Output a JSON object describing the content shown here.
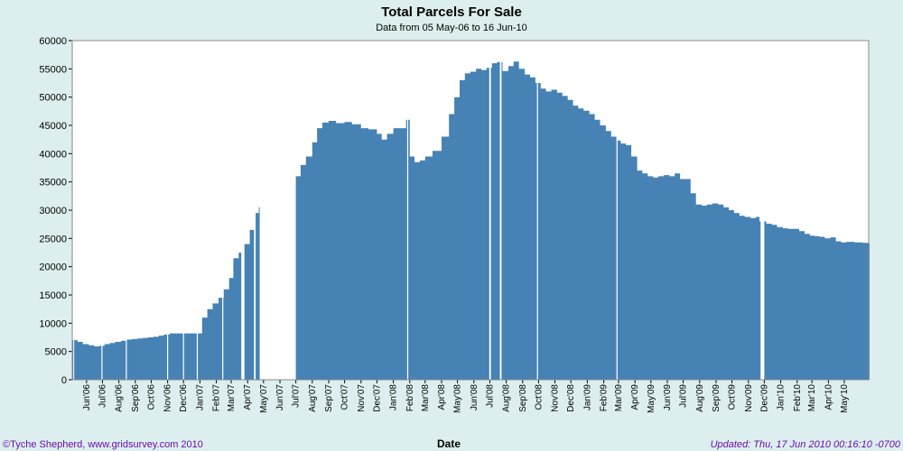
{
  "chart_data": {
    "type": "bar",
    "title": "Total Parcels For Sale",
    "subtitle": "Data from 05 May-06 to 16 Jun-10",
    "xlabel": "Date",
    "ylabel": "",
    "ylim": [
      0,
      60000
    ],
    "yticks": [
      "0",
      "5000",
      "10000",
      "15000",
      "20000",
      "25000",
      "30000",
      "35000",
      "40000",
      "45000",
      "50000",
      "55000",
      "60000"
    ],
    "xlim": [
      "2006-05-05",
      "2010-06-16"
    ],
    "xticks": [
      {
        "date": "2006-06-01",
        "label": "Jun'06"
      },
      {
        "date": "2006-07-01",
        "label": "Jul'06"
      },
      {
        "date": "2006-08-01",
        "label": "Aug'06"
      },
      {
        "date": "2006-09-01",
        "label": "Sep'06"
      },
      {
        "date": "2006-10-01",
        "label": "Oct'06"
      },
      {
        "date": "2006-11-01",
        "label": "Nov'06"
      },
      {
        "date": "2006-12-01",
        "label": "Dec'06"
      },
      {
        "date": "2007-01-01",
        "label": "Jan'07"
      },
      {
        "date": "2007-02-01",
        "label": "Feb'07"
      },
      {
        "date": "2007-03-01",
        "label": "Mar'07"
      },
      {
        "date": "2007-04-01",
        "label": "Apr'07"
      },
      {
        "date": "2007-05-01",
        "label": "May'07"
      },
      {
        "date": "2007-06-01",
        "label": "Jun'07"
      },
      {
        "date": "2007-07-01",
        "label": "Jul'07"
      },
      {
        "date": "2007-08-01",
        "label": "Aug'07"
      },
      {
        "date": "2007-09-01",
        "label": "Sep'07"
      },
      {
        "date": "2007-10-01",
        "label": "Oct'07"
      },
      {
        "date": "2007-11-01",
        "label": "Nov'07"
      },
      {
        "date": "2007-12-01",
        "label": "Dec'07"
      },
      {
        "date": "2008-01-01",
        "label": "Jan'08"
      },
      {
        "date": "2008-02-01",
        "label": "Feb'08"
      },
      {
        "date": "2008-03-01",
        "label": "Mar'08"
      },
      {
        "date": "2008-04-01",
        "label": "Apr'08"
      },
      {
        "date": "2008-05-01",
        "label": "May'08"
      },
      {
        "date": "2008-06-01",
        "label": "Jun'08"
      },
      {
        "date": "2008-07-01",
        "label": "Jul'08"
      },
      {
        "date": "2008-08-01",
        "label": "Aug'08"
      },
      {
        "date": "2008-09-01",
        "label": "Sep'08"
      },
      {
        "date": "2008-10-01",
        "label": "Oct'08"
      },
      {
        "date": "2008-11-01",
        "label": "Nov'08"
      },
      {
        "date": "2008-12-01",
        "label": "Dec'08"
      },
      {
        "date": "2009-01-01",
        "label": "Jan'09"
      },
      {
        "date": "2009-02-01",
        "label": "Feb'09"
      },
      {
        "date": "2009-03-01",
        "label": "Mar'09"
      },
      {
        "date": "2009-04-01",
        "label": "Apr'09"
      },
      {
        "date": "2009-05-01",
        "label": "May'09"
      },
      {
        "date": "2009-06-01",
        "label": "Jun'09"
      },
      {
        "date": "2009-07-01",
        "label": "Jul'09"
      },
      {
        "date": "2009-08-01",
        "label": "Aug'09"
      },
      {
        "date": "2009-09-01",
        "label": "Sep'09"
      },
      {
        "date": "2009-10-01",
        "label": "Oct'09"
      },
      {
        "date": "2009-11-01",
        "label": "Nov'09"
      },
      {
        "date": "2009-12-01",
        "label": "Dec'09"
      },
      {
        "date": "2010-01-01",
        "label": "Jan'10"
      },
      {
        "date": "2010-02-01",
        "label": "Feb'10"
      },
      {
        "date": "2010-03-01",
        "label": "Mar'10"
      },
      {
        "date": "2010-04-01",
        "label": "Apr'10"
      },
      {
        "date": "2010-05-01",
        "label": "May'10"
      }
    ],
    "grid": false,
    "bar_color": "#4682b4",
    "series": [
      {
        "values": [
          [
            "2006-05-05",
            7000
          ],
          [
            "2006-05-15",
            6700
          ],
          [
            "2006-05-25",
            6300
          ],
          [
            "2006-06-05",
            6100
          ],
          [
            "2006-06-15",
            5900
          ],
          [
            "2006-06-25",
            6000
          ],
          [
            "2006-07-05",
            6300
          ],
          [
            "2006-07-15",
            6500
          ],
          [
            "2006-07-25",
            6700
          ],
          [
            "2006-08-05",
            6900
          ],
          [
            "2006-08-15",
            7100
          ],
          [
            "2006-08-25",
            7200
          ],
          [
            "2006-09-05",
            7300
          ],
          [
            "2006-09-15",
            7400
          ],
          [
            "2006-09-25",
            7500
          ],
          [
            "2006-10-05",
            7600
          ],
          [
            "2006-10-15",
            7800
          ],
          [
            "2006-10-25",
            8000
          ],
          [
            "2006-11-05",
            8200
          ],
          [
            "2006-11-15",
            8200
          ],
          [
            "2006-11-25",
            8200
          ],
          [
            "2006-12-05",
            8200
          ],
          [
            "2006-12-15",
            8200
          ],
          [
            "2006-12-25",
            8200
          ],
          [
            "2007-01-05",
            11000
          ],
          [
            "2007-01-15",
            12500
          ],
          [
            "2007-01-25",
            13500
          ],
          [
            "2007-02-05",
            14500
          ],
          [
            "2007-02-15",
            16000
          ],
          [
            "2007-02-25",
            18000
          ],
          [
            "2007-03-05",
            21500
          ],
          [
            "2007-03-15",
            22500
          ],
          [
            "2007-03-25",
            24000
          ],
          [
            "2007-04-05",
            26500
          ],
          [
            "2007-04-15",
            29500
          ],
          [
            "2007-04-22",
            30500
          ],
          [
            "2007-07-01",
            36000
          ],
          [
            "2007-07-10",
            38000
          ],
          [
            "2007-07-20",
            39500
          ],
          [
            "2007-08-01",
            42000
          ],
          [
            "2007-08-10",
            44500
          ],
          [
            "2007-08-20",
            45500
          ],
          [
            "2007-09-01",
            45800
          ],
          [
            "2007-09-15",
            45400
          ],
          [
            "2007-10-01",
            45600
          ],
          [
            "2007-10-15",
            45200
          ],
          [
            "2007-11-01",
            44500
          ],
          [
            "2007-11-15",
            44300
          ],
          [
            "2007-12-01",
            43500
          ],
          [
            "2007-12-10",
            42500
          ],
          [
            "2007-12-20",
            43500
          ],
          [
            "2008-01-01",
            44500
          ],
          [
            "2008-01-15",
            44500
          ],
          [
            "2008-01-25",
            46000
          ],
          [
            "2008-02-01",
            39500
          ],
          [
            "2008-02-10",
            38500
          ],
          [
            "2008-02-20",
            38800
          ],
          [
            "2008-03-01",
            39500
          ],
          [
            "2008-03-15",
            40500
          ],
          [
            "2008-04-01",
            43000
          ],
          [
            "2008-04-15",
            47000
          ],
          [
            "2008-04-25",
            50000
          ],
          [
            "2008-05-05",
            53000
          ],
          [
            "2008-05-15",
            54200
          ],
          [
            "2008-05-25",
            54500
          ],
          [
            "2008-06-05",
            55000
          ],
          [
            "2008-06-15",
            54800
          ],
          [
            "2008-06-25",
            55200
          ],
          [
            "2008-07-05",
            56000
          ],
          [
            "2008-07-15",
            56200
          ],
          [
            "2008-07-25",
            54600
          ],
          [
            "2008-08-05",
            55500
          ],
          [
            "2008-08-15",
            56300
          ],
          [
            "2008-08-25",
            55000
          ],
          [
            "2008-09-05",
            54000
          ],
          [
            "2008-09-15",
            53500
          ],
          [
            "2008-09-25",
            52500
          ],
          [
            "2008-10-05",
            51500
          ],
          [
            "2008-10-15",
            51000
          ],
          [
            "2008-10-25",
            51300
          ],
          [
            "2008-11-05",
            50800
          ],
          [
            "2008-11-15",
            50200
          ],
          [
            "2008-11-25",
            49500
          ],
          [
            "2008-12-05",
            48500
          ],
          [
            "2008-12-15",
            48000
          ],
          [
            "2008-12-25",
            47600
          ],
          [
            "2009-01-05",
            47000
          ],
          [
            "2009-01-15",
            46000
          ],
          [
            "2009-01-25",
            45000
          ],
          [
            "2009-02-05",
            44000
          ],
          [
            "2009-02-15",
            43000
          ],
          [
            "2009-02-25",
            42300
          ],
          [
            "2009-03-05",
            41800
          ],
          [
            "2009-03-15",
            41500
          ],
          [
            "2009-03-25",
            39500
          ],
          [
            "2009-04-05",
            37000
          ],
          [
            "2009-04-15",
            36500
          ],
          [
            "2009-04-25",
            36000
          ],
          [
            "2009-05-05",
            35800
          ],
          [
            "2009-05-15",
            36000
          ],
          [
            "2009-05-25",
            36200
          ],
          [
            "2009-06-05",
            36000
          ],
          [
            "2009-06-15",
            36500
          ],
          [
            "2009-06-25",
            35500
          ],
          [
            "2009-07-05",
            35500
          ],
          [
            "2009-07-15",
            33000
          ],
          [
            "2009-07-25",
            31000
          ],
          [
            "2009-08-05",
            30800
          ],
          [
            "2009-08-15",
            31000
          ],
          [
            "2009-08-25",
            31200
          ],
          [
            "2009-09-05",
            31000
          ],
          [
            "2009-09-15",
            30500
          ],
          [
            "2009-09-25",
            30000
          ],
          [
            "2009-10-05",
            29500
          ],
          [
            "2009-10-15",
            29000
          ],
          [
            "2009-10-25",
            28800
          ],
          [
            "2009-11-05",
            28600
          ],
          [
            "2009-11-15",
            28800
          ],
          [
            "2009-11-22",
            28000
          ],
          [
            "2009-12-05",
            27600
          ],
          [
            "2009-12-15",
            27400
          ],
          [
            "2009-12-25",
            27000
          ],
          [
            "2010-01-05",
            26800
          ],
          [
            "2010-01-15",
            26700
          ],
          [
            "2010-01-25",
            26700
          ],
          [
            "2010-02-05",
            26300
          ],
          [
            "2010-02-15",
            25800
          ],
          [
            "2010-02-25",
            25500
          ],
          [
            "2010-03-05",
            25400
          ],
          [
            "2010-03-15",
            25300
          ],
          [
            "2010-03-25",
            25000
          ],
          [
            "2010-04-05",
            25200
          ],
          [
            "2010-04-15",
            24500
          ],
          [
            "2010-04-25",
            24300
          ],
          [
            "2010-05-05",
            24400
          ],
          [
            "2010-05-20",
            24300
          ],
          [
            "2010-06-05",
            24200
          ],
          [
            "2010-06-16",
            24100
          ]
        ]
      }
    ],
    "gaps": [
      [
        "2006-05-07",
        "2006-05-08"
      ],
      [
        "2006-06-29",
        "2006-07-01"
      ],
      [
        "2006-08-14",
        "2006-08-16"
      ],
      [
        "2006-10-31",
        "2006-11-02"
      ],
      [
        "2006-11-30",
        "2006-12-02"
      ],
      [
        "2006-12-26",
        "2006-12-28"
      ],
      [
        "2007-02-12",
        "2007-02-14"
      ],
      [
        "2007-03-20",
        "2007-03-26"
      ],
      [
        "2007-04-13",
        "2007-04-16"
      ],
      [
        "2008-01-27",
        "2008-01-29"
      ],
      [
        "2008-06-30",
        "2008-07-03"
      ],
      [
        "2008-07-20",
        "2008-07-23"
      ],
      [
        "2008-09-28",
        "2008-09-30"
      ],
      [
        "2009-02-25",
        "2009-02-27"
      ],
      [
        "2009-11-24",
        "2009-12-01"
      ]
    ]
  },
  "footer": {
    "left": "©Tyche Shepherd, www.gridsurvey.com 2010",
    "right": "Updated: Thu, 17 Jun 2010 00:16:10 -0700"
  },
  "colors": {
    "background": "#dcefee",
    "plot_background": "#ffffff",
    "bar": "#4682b4",
    "footer_text": "#6a0dad"
  }
}
